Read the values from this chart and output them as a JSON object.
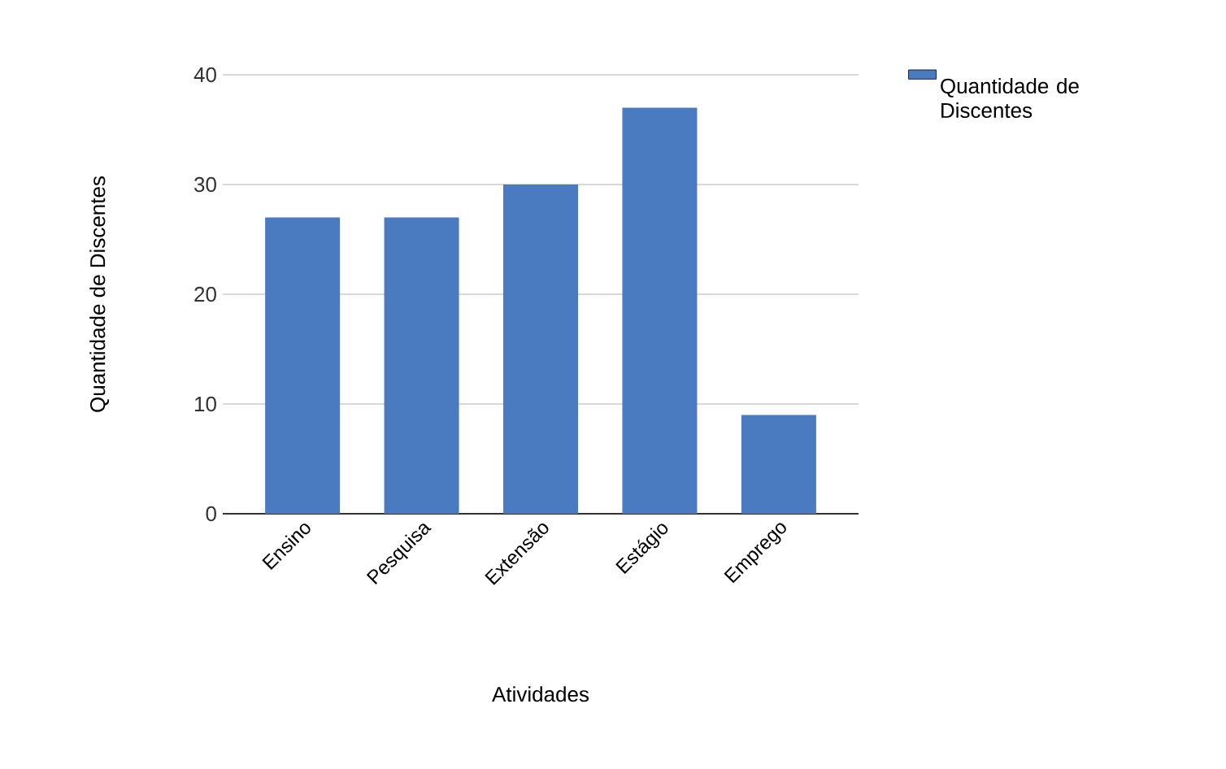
{
  "chart_data": {
    "type": "bar",
    "xlabel": "Atividades",
    "ylabel": "Quantidade de Discentes",
    "categories": [
      "Ensino",
      "Pesquisa",
      "Extensão",
      "Estágio",
      "Emprego"
    ],
    "series": [
      {
        "name": "Quantidade de Discentes",
        "color": "#4a7bc0",
        "values": [
          27,
          27,
          30,
          37,
          9
        ]
      }
    ],
    "ylim": [
      0,
      40
    ],
    "yticks": [
      0,
      10,
      20,
      30,
      40
    ],
    "grid": "y",
    "legend": "top right"
  }
}
